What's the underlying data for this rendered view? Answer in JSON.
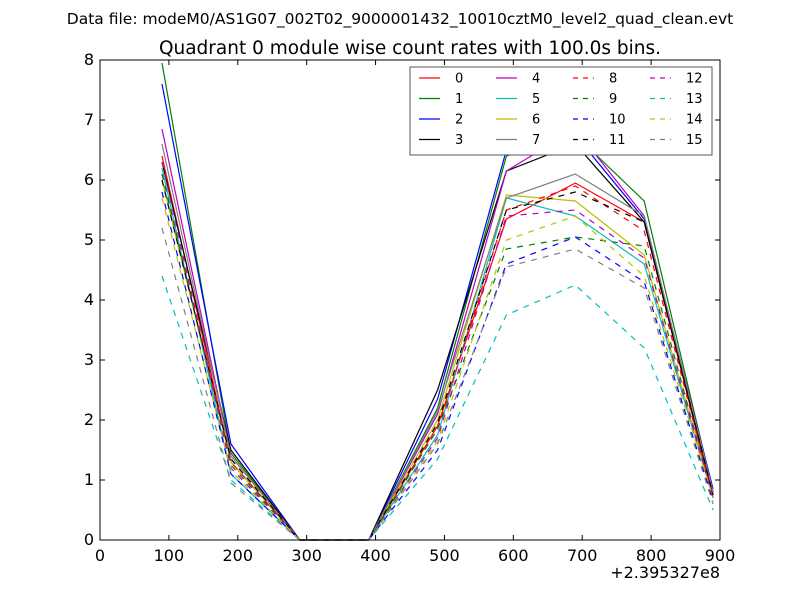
{
  "header": {
    "datafile": "Data file: modeM0/AS1G07_002T02_9000001432_10010cztM0_level2_quad_clean.evt"
  },
  "chart_data": {
    "type": "line",
    "title": "Quadrant 0 module wise count rates with 100.0s bins.",
    "xlabel": "",
    "ylabel": "",
    "x_offset_label": "+2.395327e8",
    "x": [
      90,
      190,
      290,
      390,
      490,
      590,
      690,
      790,
      890
    ],
    "xlim": [
      0,
      900
    ],
    "ylim": [
      0,
      8
    ],
    "xticks": [
      "0",
      "100",
      "200",
      "300",
      "400",
      "500",
      "600",
      "700",
      "800",
      "900"
    ],
    "yticks": [
      "0",
      "1",
      "2",
      "3",
      "4",
      "5",
      "6",
      "7",
      "8"
    ],
    "grid": false,
    "legend_position": "top-right",
    "series": [
      {
        "name": "0",
        "color": "#ff0000",
        "dash": "solid",
        "values": [
          6.4,
          1.3,
          0,
          0,
          1.9,
          5.35,
          5.95,
          5.3,
          0.7
        ]
      },
      {
        "name": "1",
        "color": "#008000",
        "dash": "solid",
        "values": [
          7.95,
          1.45,
          0,
          0,
          2.2,
          6.4,
          6.75,
          5.65,
          0.8
        ]
      },
      {
        "name": "2",
        "color": "#0000ff",
        "dash": "solid",
        "values": [
          7.6,
          1.6,
          0,
          0,
          2.35,
          6.5,
          6.75,
          5.35,
          0.85
        ]
      },
      {
        "name": "3",
        "color": "#000000",
        "dash": "solid",
        "values": [
          6.3,
          1.5,
          0,
          0,
          2.5,
          6.15,
          6.6,
          5.3,
          0.75
        ]
      },
      {
        "name": "4",
        "color": "#bf00bf",
        "dash": "solid",
        "values": [
          6.85,
          1.4,
          0,
          0,
          2.1,
          6.15,
          6.85,
          5.4,
          0.8
        ]
      },
      {
        "name": "5",
        "color": "#00bfbf",
        "dash": "solid",
        "values": [
          6.2,
          1.1,
          0,
          0,
          1.75,
          5.7,
          5.4,
          4.6,
          0.7
        ]
      },
      {
        "name": "6",
        "color": "#bfbf00",
        "dash": "solid",
        "values": [
          6.0,
          1.3,
          0,
          0,
          2.0,
          5.75,
          5.65,
          4.75,
          0.7
        ]
      },
      {
        "name": "7",
        "color": "#808080",
        "dash": "solid",
        "values": [
          6.6,
          1.4,
          0,
          0,
          2.15,
          5.7,
          6.1,
          5.4,
          0.8
        ]
      },
      {
        "name": "8",
        "color": "#ff0000",
        "dash": "dashed",
        "values": [
          6.1,
          1.3,
          0,
          0,
          1.85,
          5.5,
          5.9,
          5.15,
          0.7
        ]
      },
      {
        "name": "9",
        "color": "#008000",
        "dash": "dashed",
        "values": [
          6.1,
          1.25,
          0,
          0,
          1.85,
          4.85,
          5.05,
          4.9,
          0.7
        ]
      },
      {
        "name": "10",
        "color": "#0000ff",
        "dash": "dashed",
        "values": [
          5.8,
          1.1,
          0,
          0,
          1.5,
          4.6,
          5.05,
          4.3,
          0.65
        ]
      },
      {
        "name": "11",
        "color": "#000000",
        "dash": "dashed",
        "values": [
          6.0,
          1.35,
          0,
          0,
          1.95,
          5.5,
          5.8,
          5.3,
          0.75
        ]
      },
      {
        "name": "12",
        "color": "#bf00bf",
        "dash": "dashed",
        "values": [
          6.3,
          1.2,
          0,
          0,
          1.7,
          5.4,
          5.5,
          4.7,
          0.7
        ]
      },
      {
        "name": "13",
        "color": "#00bfbf",
        "dash": "dashed",
        "values": [
          4.4,
          1.0,
          0,
          0,
          1.35,
          3.75,
          4.25,
          3.2,
          0.5
        ]
      },
      {
        "name": "14",
        "color": "#bfbf00",
        "dash": "dashed",
        "values": [
          5.7,
          1.15,
          0,
          0,
          1.65,
          5.0,
          5.4,
          4.4,
          0.7
        ]
      },
      {
        "name": "15",
        "color": "#808080",
        "dash": "dashed",
        "values": [
          5.2,
          0.95,
          0,
          0,
          1.6,
          4.55,
          4.85,
          4.2,
          0.6
        ]
      }
    ]
  }
}
